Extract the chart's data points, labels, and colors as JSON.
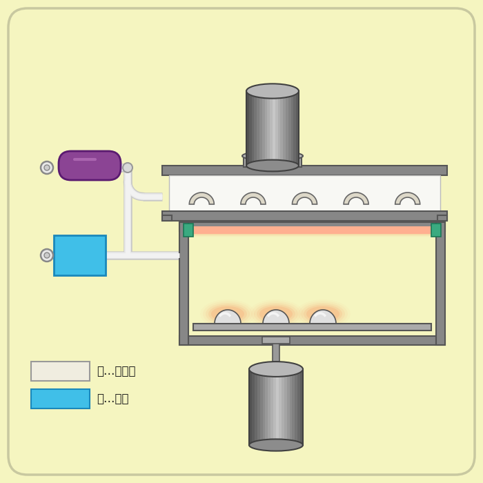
{
  "bg_color": "#f5f5c0",
  "frame_color": "#808080",
  "frame_edge": "#555555",
  "pipe_fill": "#e0e0e0",
  "pipe_edge": "#aaaaaa",
  "purple": "#8b4494",
  "blue": "#40bfe8",
  "teal": "#3aaa80",
  "cream": "#f5f2e8",
  "white_panel": "#f8f8f4",
  "orange": "#ff9966",
  "dark_gray": "#606060",
  "legend_yellow_fill": "#f0ede0",
  "legend_blue_fill": "#40bfe8",
  "text_color": "#1a1a1a",
  "fs": 12
}
